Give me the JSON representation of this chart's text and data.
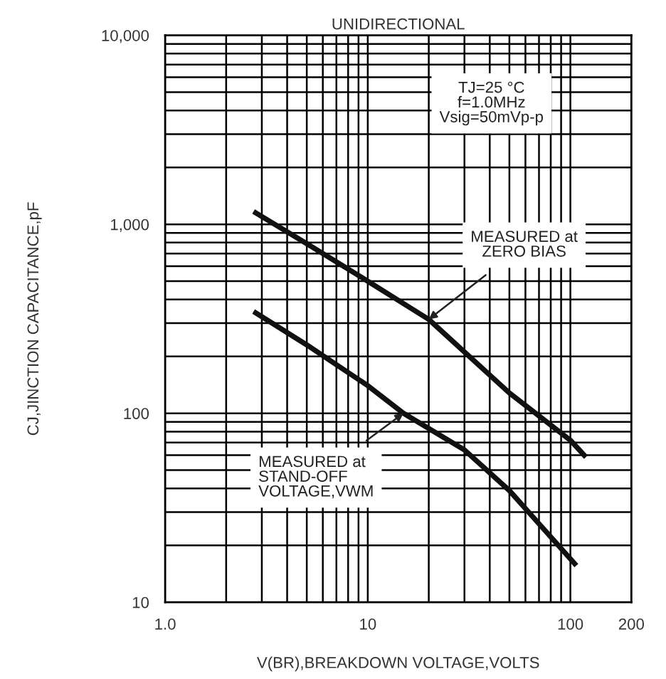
{
  "chart_data": {
    "type": "line",
    "title": "UNIDIRECTIONAL",
    "xlabel": "V(BR),BREAKDOWN VOLTAGE,VOLTS",
    "ylabel": "CJ,JINCTION CAPACITANCE,pF",
    "log": "xy",
    "grid": true,
    "marker": "none",
    "line_style": "solid",
    "xlim": [
      1,
      200
    ],
    "xticks": [
      {
        "value": 1,
        "label": "1.0"
      },
      10,
      100,
      200
    ],
    "ylim": [
      10,
      10000
    ],
    "yticks": [
      10,
      100,
      {
        "value": 1000,
        "label": "1,000"
      },
      {
        "value": 10000,
        "label": "10,000"
      }
    ],
    "series": [
      {
        "color": "#111111",
        "x": [
          2.8,
          5,
          10,
          20,
          50,
          100,
          117
        ],
        "values": [
          1150,
          790,
          500,
          314,
          128,
          72,
          60
        ]
      },
      {
        "color": "#111111",
        "x": [
          2.8,
          5,
          10,
          15,
          30,
          50,
          105
        ],
        "values": [
          340,
          230,
          140,
          100,
          64,
          39,
          16
        ]
      }
    ],
    "annotations": [
      "TJ=25 °C\nf=1.0MHz\nVsig=50mVp-p",
      {
        "text": "MEASURED at\nZERO BIAS",
        "x": 20,
        "y": 314
      },
      {
        "text": "MEASURED at\nSTAND-OFF\nVOLTAGE,VWM",
        "x": 15,
        "y": 100
      }
    ]
  }
}
